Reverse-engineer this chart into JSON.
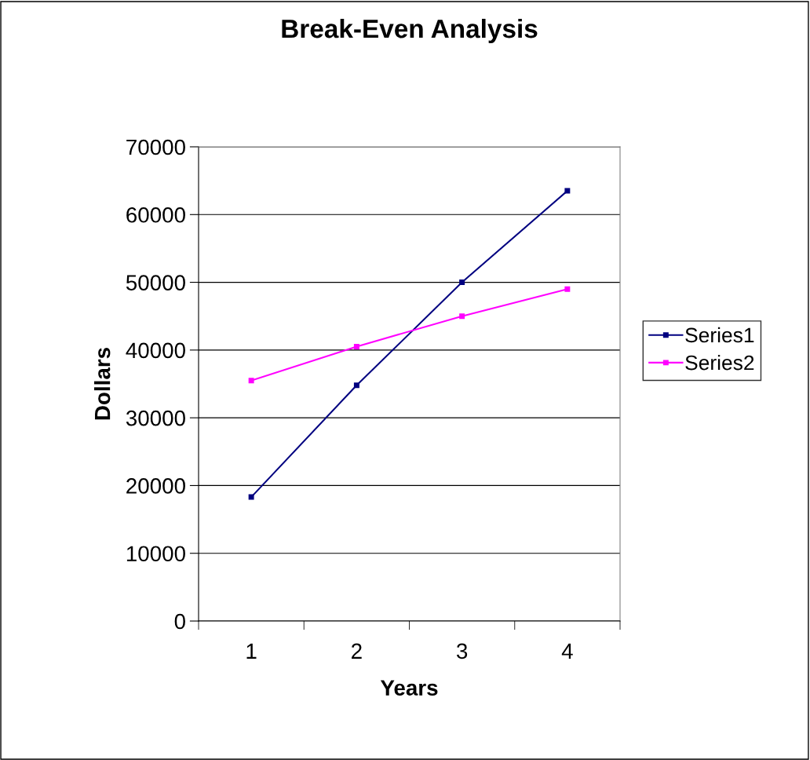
{
  "chart_data": {
    "type": "line",
    "title": "Break-Even Analysis",
    "xlabel": "Years",
    "ylabel": "Dollars",
    "categories": [
      "1",
      "2",
      "3",
      "4"
    ],
    "series": [
      {
        "name": "Series1",
        "color": "#000080",
        "values": [
          18300,
          34800,
          50000,
          63500
        ]
      },
      {
        "name": "Series2",
        "color": "#ff00ff",
        "values": [
          35500,
          40500,
          45000,
          49000
        ]
      }
    ],
    "ylim": [
      0,
      70000
    ],
    "yticks": [
      0,
      10000,
      20000,
      30000,
      40000,
      50000,
      60000,
      70000
    ],
    "grid": "y",
    "legend": "right",
    "marker": "square",
    "line_style": "solid"
  }
}
